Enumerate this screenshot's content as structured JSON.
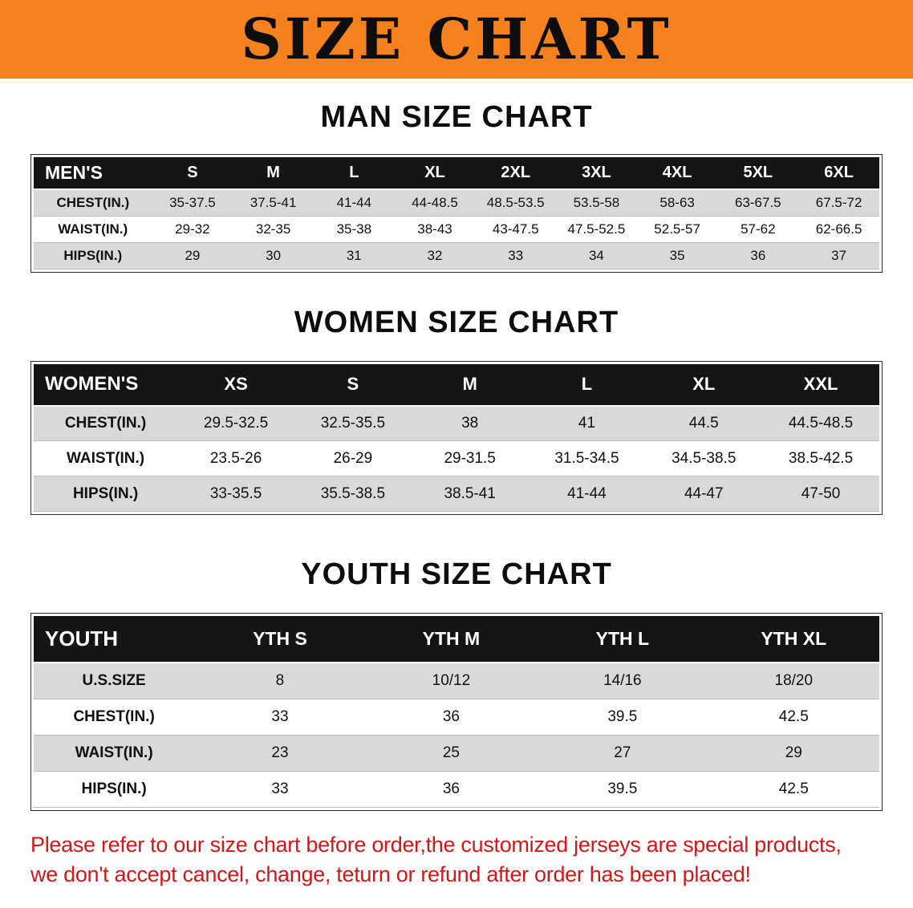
{
  "banner": {
    "title": "SIZE CHART"
  },
  "men": {
    "heading": "MAN SIZE CHART",
    "header": [
      "MEN'S",
      "S",
      "M",
      "L",
      "XL",
      "2XL",
      "3XL",
      "4XL",
      "5XL",
      "6XL"
    ],
    "rows": [
      {
        "label": "CHEST(IN.)",
        "values": [
          "35-37.5",
          "37.5-41",
          "41-44",
          "44-48.5",
          "48.5-53.5",
          "53.5-58",
          "58-63",
          "63-67.5",
          "67.5-72"
        ]
      },
      {
        "label": "WAIST(IN.)",
        "values": [
          "29-32",
          "32-35",
          "35-38",
          "38-43",
          "43-47.5",
          "47.5-52.5",
          "52.5-57",
          "57-62",
          "62-66.5"
        ]
      },
      {
        "label": "HIPS(IN.)",
        "values": [
          "29",
          "30",
          "31",
          "32",
          "33",
          "34",
          "35",
          "36",
          "37"
        ]
      }
    ]
  },
  "women": {
    "heading": "WOMEN SIZE CHART",
    "header": [
      "WOMEN'S",
      "XS",
      "S",
      "M",
      "L",
      "XL",
      "XXL"
    ],
    "rows": [
      {
        "label": "CHEST(IN.)",
        "values": [
          "29.5-32.5",
          "32.5-35.5",
          "38",
          "41",
          "44.5",
          "44.5-48.5"
        ]
      },
      {
        "label": "WAIST(IN.)",
        "values": [
          "23.5-26",
          "26-29",
          "29-31.5",
          "31.5-34.5",
          "34.5-38.5",
          "38.5-42.5"
        ]
      },
      {
        "label": "HIPS(IN.)",
        "values": [
          "33-35.5",
          "35.5-38.5",
          "38.5-41",
          "41-44",
          "44-47",
          "47-50"
        ]
      }
    ]
  },
  "youth": {
    "heading": "YOUTH SIZE CHART",
    "header": [
      "YOUTH",
      "YTH S",
      "YTH M",
      "YTH L",
      "YTH XL"
    ],
    "rows": [
      {
        "label": "U.S.SIZE",
        "values": [
          "8",
          "10/12",
          "14/16",
          "18/20"
        ]
      },
      {
        "label": "CHEST(IN.)",
        "values": [
          "33",
          "36",
          "39.5",
          "42.5"
        ]
      },
      {
        "label": "WAIST(IN.)",
        "values": [
          "23",
          "25",
          "27",
          "29"
        ]
      },
      {
        "label": "HIPS(IN.)",
        "values": [
          "33",
          "36",
          "39.5",
          "42.5"
        ]
      }
    ]
  },
  "disclaimer": {
    "line1": "Please refer to our size chart before order,the customized jerseys are special products,",
    "line2": "we don't accept cancel, change, teturn or refund after order has been placed!"
  },
  "colors": {
    "banner_orange": "#F5821F",
    "table_header_black": "#151515",
    "row_shade_gray": "#D9D9D9",
    "disclaimer_red": "#D01818"
  }
}
